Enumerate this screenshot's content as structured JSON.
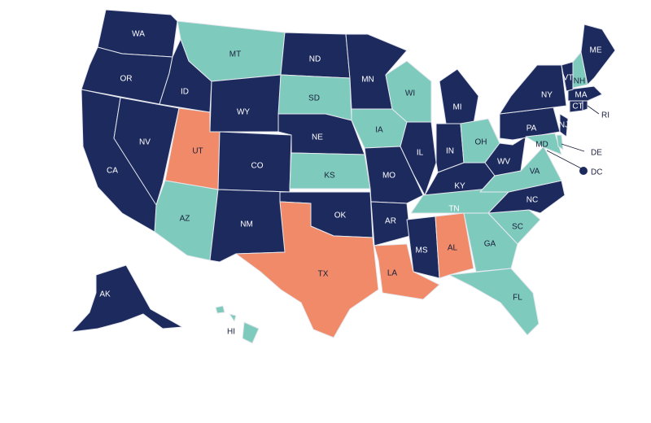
{
  "colors": {
    "navy": "#1d2a5e",
    "teal": "#7ecbbd",
    "salmon": "#f08a68",
    "border": "#e6e8ee"
  },
  "states": [
    {
      "code": "WA",
      "category": "navy"
    },
    {
      "code": "OR",
      "category": "navy"
    },
    {
      "code": "CA",
      "category": "navy"
    },
    {
      "code": "NV",
      "category": "navy"
    },
    {
      "code": "ID",
      "category": "navy"
    },
    {
      "code": "MT",
      "category": "teal"
    },
    {
      "code": "WY",
      "category": "navy"
    },
    {
      "code": "UT",
      "category": "salmon"
    },
    {
      "code": "CO",
      "category": "navy"
    },
    {
      "code": "AZ",
      "category": "teal"
    },
    {
      "code": "NM",
      "category": "navy"
    },
    {
      "code": "ND",
      "category": "navy"
    },
    {
      "code": "SD",
      "category": "teal"
    },
    {
      "code": "NE",
      "category": "navy"
    },
    {
      "code": "KS",
      "category": "teal"
    },
    {
      "code": "OK",
      "category": "navy"
    },
    {
      "code": "TX",
      "category": "salmon"
    },
    {
      "code": "MN",
      "category": "navy"
    },
    {
      "code": "IA",
      "category": "teal"
    },
    {
      "code": "MO",
      "category": "navy"
    },
    {
      "code": "AR",
      "category": "navy"
    },
    {
      "code": "LA",
      "category": "salmon"
    },
    {
      "code": "WI",
      "category": "teal"
    },
    {
      "code": "IL",
      "category": "navy"
    },
    {
      "code": "MI",
      "category": "navy"
    },
    {
      "code": "IN",
      "category": "navy"
    },
    {
      "code": "OH",
      "category": "teal"
    },
    {
      "code": "KY",
      "category": "navy"
    },
    {
      "code": "TN",
      "category": "teal"
    },
    {
      "code": "MS",
      "category": "navy"
    },
    {
      "code": "AL",
      "category": "salmon"
    },
    {
      "code": "GA",
      "category": "teal"
    },
    {
      "code": "FL",
      "category": "teal"
    },
    {
      "code": "SC",
      "category": "teal"
    },
    {
      "code": "NC",
      "category": "navy"
    },
    {
      "code": "VA",
      "category": "teal"
    },
    {
      "code": "WV",
      "category": "navy"
    },
    {
      "code": "PA",
      "category": "navy"
    },
    {
      "code": "NY",
      "category": "navy"
    },
    {
      "code": "NJ",
      "category": "navy"
    },
    {
      "code": "MD",
      "category": "teal"
    },
    {
      "code": "DE",
      "category": "teal"
    },
    {
      "code": "DC",
      "category": "navy"
    },
    {
      "code": "CT",
      "category": "navy"
    },
    {
      "code": "RI",
      "category": "navy"
    },
    {
      "code": "MA",
      "category": "navy"
    },
    {
      "code": "VT",
      "category": "navy"
    },
    {
      "code": "NH",
      "category": "teal"
    },
    {
      "code": "ME",
      "category": "navy"
    },
    {
      "code": "AK",
      "category": "navy"
    },
    {
      "code": "HI",
      "category": "teal"
    }
  ]
}
